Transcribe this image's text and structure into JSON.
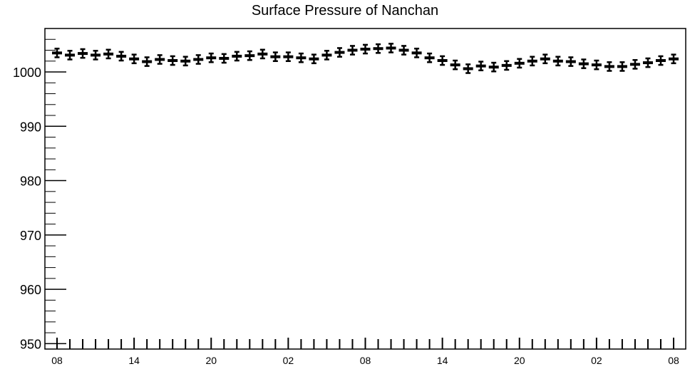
{
  "chart_data": {
    "type": "scatter",
    "title": "Surface Pressure of Nanchan",
    "xlabel": "",
    "ylabel": "",
    "ylim": [
      949,
      1008
    ],
    "y_ticks": [
      950,
      960,
      970,
      980,
      990,
      1000
    ],
    "x_tick_labels": [
      "08",
      "14",
      "20",
      "02",
      "08",
      "14",
      "20",
      "02",
      "08"
    ],
    "grid": false,
    "series": [
      {
        "values": [
          1003.5,
          1003.1,
          1003.4,
          1003.1,
          1003.3,
          1002.9,
          1002.4,
          1001.9,
          1002.3,
          1002.1,
          1002.0,
          1002.3,
          1002.6,
          1002.5,
          1002.9,
          1003.0,
          1003.3,
          1002.8,
          1002.8,
          1002.6,
          1002.4,
          1003.1,
          1003.6,
          1004.0,
          1004.2,
          1004.3,
          1004.4,
          1004.0,
          1003.5,
          1002.6,
          1002.1,
          1001.3,
          1000.6,
          1001.1,
          1000.9,
          1001.2,
          1001.6,
          1002.0,
          1002.4,
          1002.0,
          1001.9,
          1001.5,
          1001.3,
          1001.0,
          1001.0,
          1001.4,
          1001.7,
          1002.1,
          1002.4
        ],
        "error": [
          0.8,
          0.8,
          0.8,
          0.8,
          0.8,
          0.8,
          0.8,
          0.8,
          0.8,
          0.8,
          0.8,
          0.8,
          0.8,
          0.8,
          0.8,
          0.8,
          0.8,
          0.8,
          0.8,
          0.8,
          0.8,
          0.8,
          0.8,
          0.8,
          0.8,
          0.8,
          0.8,
          0.8,
          0.8,
          0.8,
          0.8,
          0.8,
          0.8,
          0.8,
          0.8,
          0.8,
          0.8,
          0.8,
          0.8,
          0.8,
          0.8,
          0.8,
          0.8,
          0.8,
          0.8,
          0.8,
          0.8,
          0.8,
          0.8
        ]
      }
    ]
  }
}
